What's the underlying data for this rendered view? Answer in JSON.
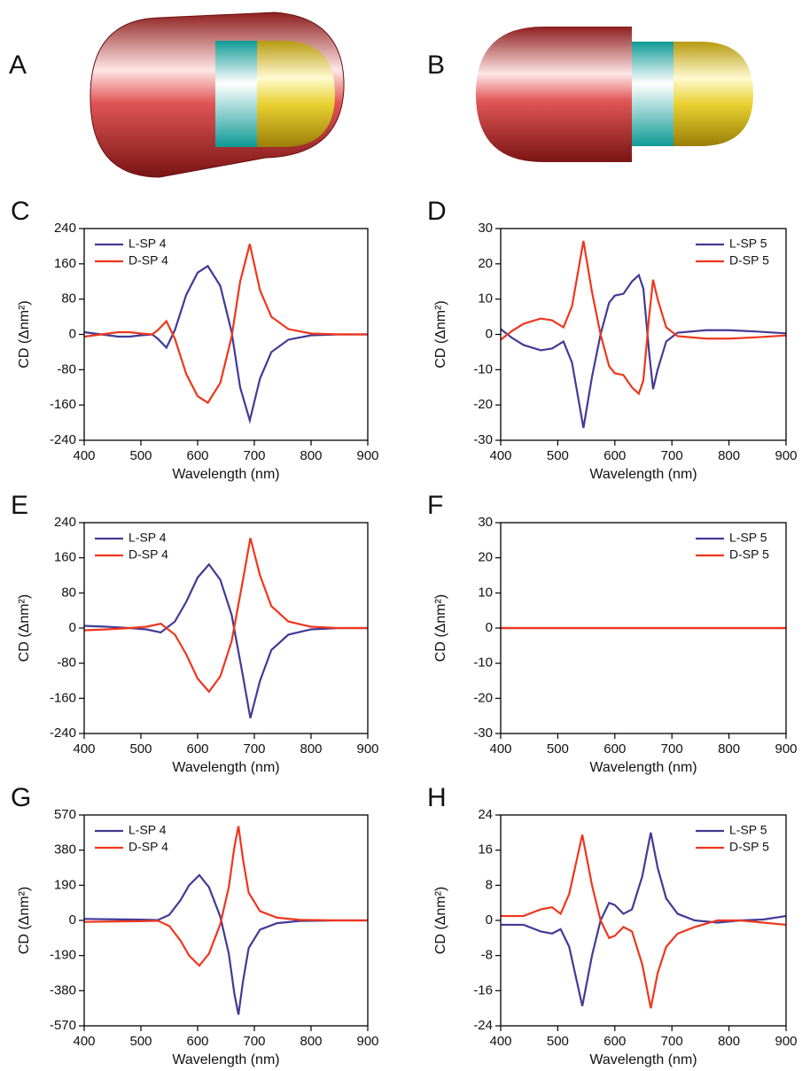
{
  "images": [
    {
      "label": "A"
    },
    {
      "label": "B"
    }
  ],
  "chart_data": [
    {
      "type": "line",
      "panel": "C",
      "xlabel": "Wavelength (nm)",
      "ylabel": "CD (Δnm²)",
      "legend": "upper left",
      "xlim": [
        400,
        900
      ],
      "xticks": [
        400,
        500,
        600,
        700,
        800,
        900
      ],
      "ylim": [
        -240,
        240
      ],
      "yticks": [
        -240,
        -160,
        -80,
        0,
        80,
        160,
        240
      ],
      "x": [
        400,
        430,
        460,
        480,
        500,
        520,
        530,
        545,
        560,
        580,
        600,
        618,
        640,
        660,
        675,
        692,
        710,
        730,
        760,
        800,
        850,
        900
      ],
      "series": [
        {
          "name": "L-SP 4",
          "color": "#413b95",
          "values": [
            5,
            0,
            -5,
            -5,
            -2,
            0,
            -10,
            -30,
            10,
            90,
            140,
            155,
            110,
            5,
            -120,
            -195,
            -100,
            -40,
            -12,
            -2,
            0,
            0
          ]
        },
        {
          "name": "D-SP 4",
          "color": "#f0361c",
          "values": [
            -5,
            0,
            5,
            5,
            2,
            0,
            10,
            30,
            -10,
            -90,
            -140,
            -155,
            -110,
            -5,
            120,
            205,
            100,
            40,
            12,
            2,
            0,
            0
          ]
        }
      ]
    },
    {
      "type": "line",
      "panel": "D",
      "xlabel": "Wavelength (nm)",
      "ylabel": "CD (Δnm²)",
      "legend": "upper right",
      "xlim": [
        400,
        900
      ],
      "xticks": [
        400,
        500,
        600,
        700,
        800,
        900
      ],
      "ylim": [
        -30,
        30
      ],
      "yticks": [
        -30,
        -20,
        -10,
        0,
        10,
        20,
        30
      ],
      "x": [
        400,
        420,
        440,
        470,
        490,
        510,
        525,
        545,
        560,
        575,
        590,
        600,
        615,
        630,
        642,
        650,
        660,
        667,
        675,
        690,
        710,
        760,
        800,
        850,
        900
      ],
      "series": [
        {
          "name": "L-SP 5",
          "color": "#413b95",
          "values": [
            1.5,
            -1,
            -3,
            -4.5,
            -4,
            -2,
            -8,
            -26.5,
            -12,
            0,
            9,
            11,
            11.5,
            15,
            16.8,
            13,
            -5,
            -15.5,
            -10,
            -2,
            0.5,
            1.2,
            1.2,
            0.8,
            0.3
          ]
        },
        {
          "name": "D-SP 5",
          "color": "#f0361c",
          "values": [
            -1.5,
            1,
            3,
            4.5,
            4,
            2,
            8,
            26.5,
            12,
            0,
            -9,
            -11,
            -11.5,
            -15,
            -16.8,
            -13,
            5,
            15.5,
            10,
            2,
            -0.5,
            -1.2,
            -1.2,
            -0.8,
            -0.3
          ]
        }
      ]
    },
    {
      "type": "line",
      "panel": "E",
      "xlabel": "Wavelength (nm)",
      "ylabel": "CD (Δnm²)",
      "legend": "upper left",
      "xlim": [
        400,
        900
      ],
      "xticks": [
        400,
        500,
        600,
        700,
        800,
        900
      ],
      "ylim": [
        -240,
        240
      ],
      "yticks": [
        -240,
        -160,
        -80,
        0,
        80,
        160,
        240
      ],
      "x": [
        400,
        440,
        480,
        510,
        535,
        560,
        580,
        600,
        620,
        640,
        660,
        680,
        693,
        710,
        730,
        760,
        800,
        850,
        900
      ],
      "series": [
        {
          "name": "L-SP 4",
          "color": "#413b95",
          "values": [
            5,
            3,
            0,
            -3,
            -10,
            15,
            60,
            115,
            145,
            110,
            30,
            -110,
            -205,
            -120,
            -50,
            -15,
            -3,
            0,
            0
          ]
        },
        {
          "name": "D-SP 4",
          "color": "#f0361c",
          "values": [
            -5,
            -3,
            0,
            3,
            10,
            -15,
            -60,
            -115,
            -145,
            -110,
            -30,
            110,
            205,
            120,
            50,
            15,
            3,
            0,
            0
          ]
        }
      ]
    },
    {
      "type": "line",
      "panel": "F",
      "xlabel": "Wavelength (nm)",
      "ylabel": "CD (Δnm²)",
      "legend": "upper right",
      "xlim": [
        400,
        900
      ],
      "xticks": [
        400,
        500,
        600,
        700,
        800,
        900
      ],
      "ylim": [
        -30,
        30
      ],
      "yticks": [
        -30,
        -20,
        -10,
        0,
        10,
        20,
        30
      ],
      "x": [
        400,
        900
      ],
      "series": [
        {
          "name": "L-SP 5",
          "color": "#413b95",
          "values": [
            0,
            0
          ]
        },
        {
          "name": "D-SP 5",
          "color": "#f0361c",
          "values": [
            0,
            0
          ]
        }
      ]
    },
    {
      "type": "line",
      "panel": "G",
      "xlabel": "Wavelength (nm)",
      "ylabel": "CD (Δnm²)",
      "legend": "upper left",
      "xlim": [
        400,
        900
      ],
      "xticks": [
        400,
        500,
        600,
        700,
        800,
        900
      ],
      "ylim": [
        -570,
        570
      ],
      "yticks": [
        -570,
        -380,
        -190,
        0,
        190,
        380,
        570
      ],
      "x": [
        400,
        450,
        500,
        530,
        550,
        570,
        585,
        603,
        620,
        640,
        655,
        665,
        672,
        680,
        690,
        710,
        740,
        780,
        850,
        900
      ],
      "series": [
        {
          "name": "L-SP 4",
          "color": "#413b95",
          "values": [
            8,
            6,
            4,
            2,
            30,
            110,
            190,
            245,
            180,
            20,
            -180,
            -400,
            -510,
            -330,
            -150,
            -50,
            -15,
            -3,
            0,
            0
          ]
        },
        {
          "name": "D-SP 4",
          "color": "#f0361c",
          "values": [
            -8,
            -6,
            -4,
            -2,
            -30,
            -110,
            -190,
            -245,
            -180,
            -20,
            180,
            400,
            510,
            330,
            150,
            50,
            15,
            3,
            0,
            0
          ]
        }
      ]
    },
    {
      "type": "line",
      "panel": "H",
      "xlabel": "Wavelength (nm)",
      "ylabel": "CD (Δnm²)",
      "legend": "upper right",
      "xlim": [
        400,
        900
      ],
      "xticks": [
        400,
        500,
        600,
        700,
        800,
        900
      ],
      "ylim": [
        -24,
        24
      ],
      "yticks": [
        -24,
        -16,
        -8,
        0,
        8,
        16,
        24
      ],
      "x": [
        400,
        440,
        470,
        490,
        505,
        520,
        543,
        560,
        575,
        590,
        600,
        615,
        630,
        648,
        663,
        675,
        690,
        710,
        740,
        780,
        820,
        860,
        900
      ],
      "series": [
        {
          "name": "L-SP 5",
          "color": "#413b95",
          "values": [
            -1,
            -1,
            -2.5,
            -3,
            -2,
            -6,
            -19.5,
            -8,
            0,
            4,
            3.5,
            1.5,
            2.5,
            10,
            20,
            12,
            5,
            1.5,
            0,
            -0.5,
            0,
            0.2,
            1
          ]
        },
        {
          "name": "D-SP 5",
          "color": "#f0361c",
          "values": [
            1,
            1,
            2.5,
            3,
            1.5,
            6,
            19.5,
            8,
            0,
            -4,
            -3.5,
            -1.5,
            -2.5,
            -10,
            -20,
            -12,
            -6,
            -3,
            -1.5,
            0,
            0,
            -0.5,
            -1
          ]
        }
      ]
    }
  ]
}
